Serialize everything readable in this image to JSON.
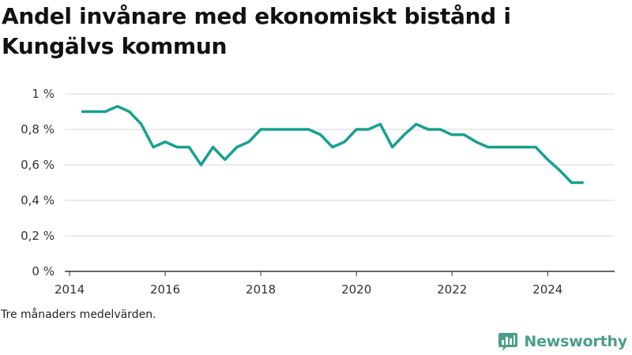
{
  "title": "Andel invånare med ekonomiskt bistånd i Kungälvs kommun",
  "note": "Tre månaders medelvärden.",
  "brand": {
    "name": "Newsworthy",
    "icon": "bar-chart-speech-bubble-icon",
    "color": "#4a9e8a"
  },
  "colors": {
    "line": "#17a091",
    "grid": "#d4d4d4",
    "axis": "#333333"
  },
  "chart_data": {
    "type": "line",
    "title": "Andel invånare med ekonomiskt bistånd i Kungälvs kommun",
    "xlabel": "",
    "ylabel": "",
    "xlim": [
      2013.9,
      2025.4
    ],
    "ylim": [
      0,
      1
    ],
    "grid": true,
    "x_ticks": [
      {
        "value": 2014,
        "label": "2014"
      },
      {
        "value": 2016,
        "label": "2016"
      },
      {
        "value": 2018,
        "label": "2018"
      },
      {
        "value": 2020,
        "label": "2020"
      },
      {
        "value": 2022,
        "label": "2022"
      },
      {
        "value": 2024,
        "label": "2024"
      }
    ],
    "y_ticks": [
      {
        "value": 0,
        "label": "0 %"
      },
      {
        "value": 0.2,
        "label": "0,2 %"
      },
      {
        "value": 0.4,
        "label": "0,4 %"
      },
      {
        "value": 0.6,
        "label": "0,6 %"
      },
      {
        "value": 0.8,
        "label": "0,8 %"
      },
      {
        "value": 1,
        "label": "1 %"
      }
    ],
    "series": [
      {
        "x": [
          2014.25,
          2014.5,
          2014.75,
          2015.0,
          2015.25,
          2015.5,
          2015.75,
          2016.0,
          2016.25,
          2016.5,
          2016.75,
          2017.0,
          2017.25,
          2017.5,
          2017.75,
          2018.0,
          2018.25,
          2018.5,
          2018.75,
          2019.0,
          2019.25,
          2019.5,
          2019.75,
          2020.0,
          2020.25,
          2020.5,
          2020.75,
          2021.0,
          2021.25,
          2021.5,
          2021.75,
          2022.0,
          2022.25,
          2022.5,
          2022.75,
          2023.0,
          2023.25,
          2023.5,
          2023.75,
          2024.0,
          2024.25,
          2024.5,
          2024.75
        ],
        "y": [
          0.9,
          0.9,
          0.9,
          0.93,
          0.9,
          0.83,
          0.7,
          0.73,
          0.7,
          0.7,
          0.6,
          0.7,
          0.63,
          0.7,
          0.73,
          0.8,
          0.8,
          0.8,
          0.8,
          0.8,
          0.77,
          0.7,
          0.73,
          0.8,
          0.8,
          0.83,
          0.7,
          0.77,
          0.83,
          0.8,
          0.8,
          0.77,
          0.77,
          0.73,
          0.7,
          0.7,
          0.7,
          0.7,
          0.7,
          0.63,
          0.57,
          0.5,
          0.5
        ]
      }
    ]
  }
}
